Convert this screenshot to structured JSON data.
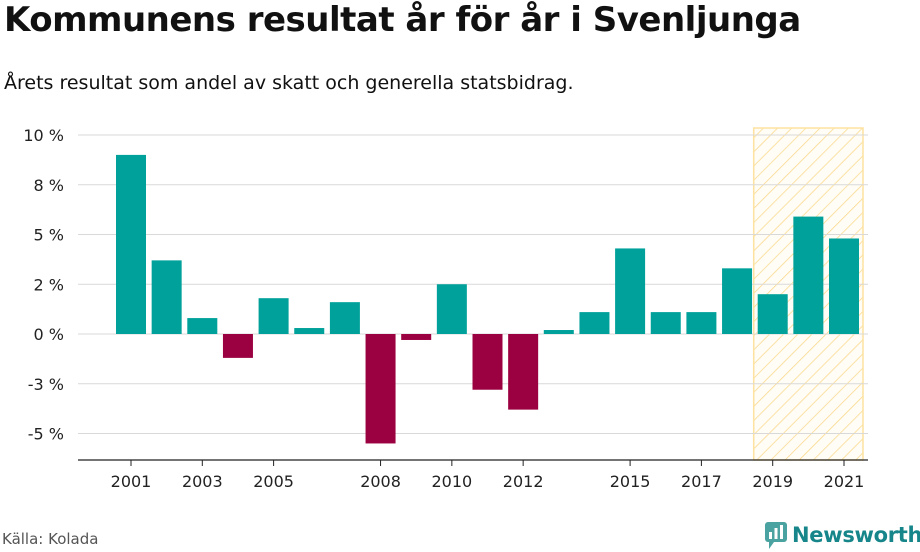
{
  "header": {
    "title": "Kommunens resultat år för år i Svenljunga",
    "subtitle": "Årets resultat som andel av skatt och generella statsbidrag."
  },
  "footer": {
    "source": "Källa: Kolada",
    "brand": "Newsworthy"
  },
  "colors": {
    "positive": "#00a19a",
    "negative": "#9b0040",
    "highlight": "#fde2a0",
    "grid": "#d9d9d9"
  },
  "chart_data": {
    "type": "bar",
    "categories": [
      2001,
      2002,
      2003,
      2004,
      2005,
      2006,
      2007,
      2008,
      2009,
      2010,
      2011,
      2012,
      2013,
      2014,
      2015,
      2016,
      2017,
      2018,
      2019,
      2020,
      2021
    ],
    "values": [
      9.0,
      3.7,
      0.8,
      -1.2,
      1.8,
      0.3,
      1.6,
      -5.5,
      -0.3,
      2.5,
      -2.8,
      -3.8,
      0.2,
      1.1,
      4.3,
      1.1,
      1.1,
      3.3,
      2.0,
      5.9,
      4.8
    ],
    "xticks": [
      2001,
      2003,
      2005,
      2008,
      2010,
      2012,
      2015,
      2017,
      2019,
      2021
    ],
    "yticks": [
      {
        "value": 10,
        "label": "10 %"
      },
      {
        "value": 7.5,
        "label": "8 %"
      },
      {
        "value": 5,
        "label": "5 %"
      },
      {
        "value": 2.5,
        "label": "2 %"
      },
      {
        "value": 0,
        "label": "0 %"
      },
      {
        "value": -2.5,
        "label": "-3 %"
      },
      {
        "value": -5,
        "label": "-5 %"
      }
    ],
    "ylim": [
      -6.3,
      10
    ],
    "highlight_range": [
      2019,
      2021
    ],
    "grid": true,
    "title": "",
    "xlabel": "",
    "ylabel": ""
  }
}
